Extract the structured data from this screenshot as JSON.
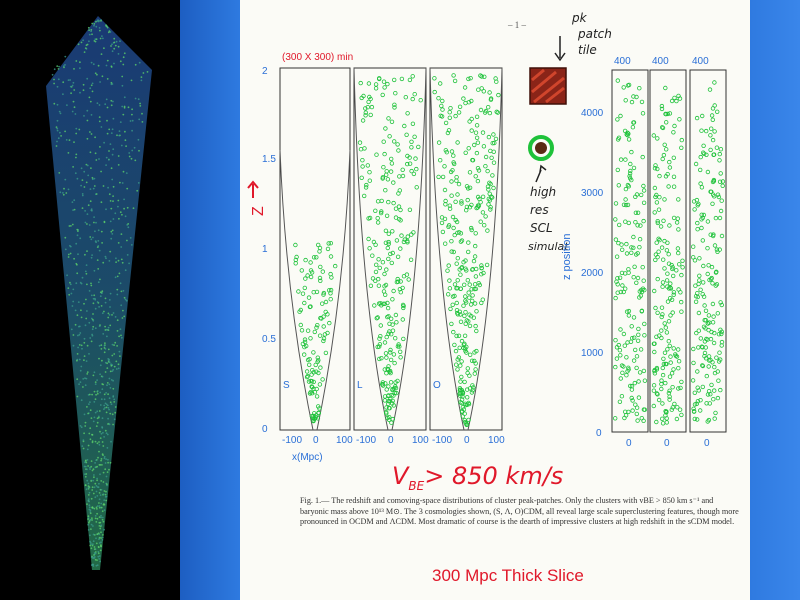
{
  "page_number": "– 1 –",
  "panel_header": "(300 X 300) min",
  "z_axis_label": "Z",
  "y_ticks": [
    "2",
    "1.5",
    "1",
    "0.5",
    "0"
  ],
  "cone_panels": [
    {
      "letter": "S",
      "x_ticks": [
        "-100",
        "0",
        "100"
      ]
    },
    {
      "letter": "L",
      "x_ticks": [
        "-100",
        "0",
        "100"
      ]
    },
    {
      "letter": "O",
      "x_ticks": [
        "-100",
        "0",
        "100"
      ]
    }
  ],
  "x_axis_label": "x(Mpc)",
  "right_panel_headers": [
    "400",
    "400",
    "400"
  ],
  "right_y_ticks": [
    "4000",
    "3000",
    "2000",
    "1000",
    "0"
  ],
  "right_x_ticks": [
    "0",
    "0",
    "0"
  ],
  "right_axis_label": "z position",
  "annotations": {
    "pk_patch": [
      "pk",
      "patch",
      "tile"
    ],
    "high_res": [
      "high",
      "res",
      "SCL",
      "simulat"
    ],
    "vbe": "V",
    "vbe_sub": "BE",
    "vbe_rest": "> 850 km/s"
  },
  "caption": "Fig. 1.— The redshift and comoving-space distributions of cluster peak-patches. Only the clusters with vBE > 850 km s⁻¹ and baryonic mass above 10¹³ M⊙. The 3 cosmologies shown, (S, Λ, O)CDM, all reveal large scale superclustering features, though more pronounced in OCDM and ΛCDM. Most dramatic of course is the dearth of impressive clusters at high redshift in the sCDM model.",
  "slice_label": "300 Mpc Thick Slice",
  "colors": {
    "point": "#1ec23a",
    "red": "#e0182a",
    "blue_axis": "#2a6fd6"
  }
}
